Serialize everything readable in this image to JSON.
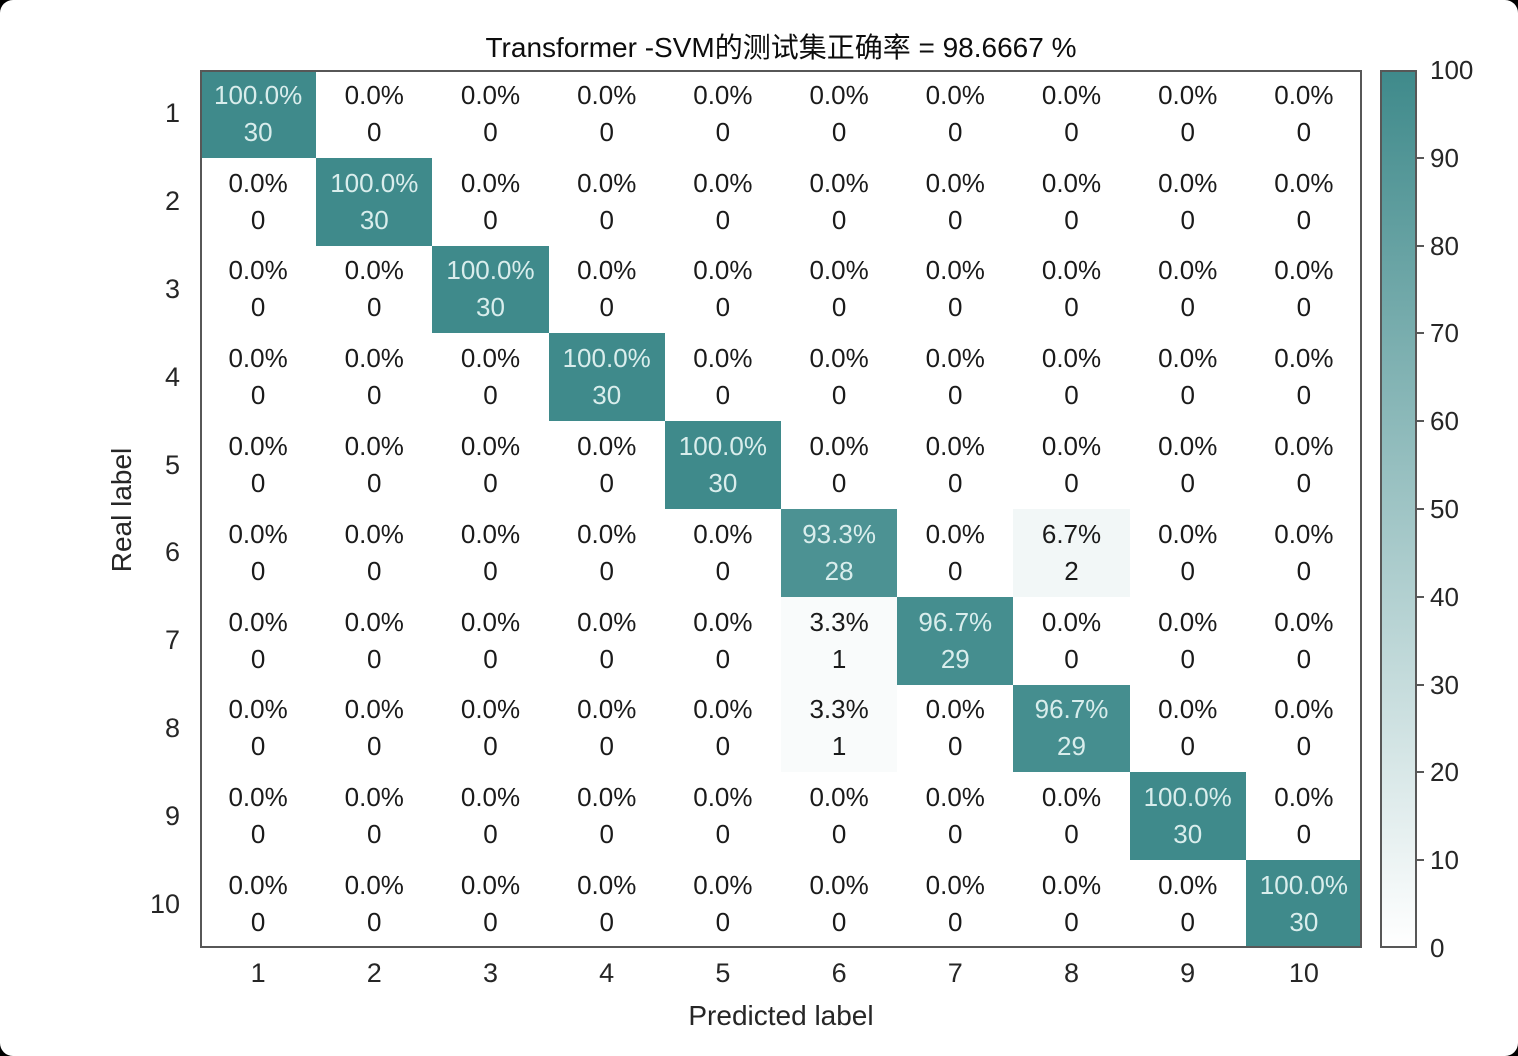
{
  "chart_data": {
    "type": "heatmap",
    "title": "Transformer -SVM的测试集正确率 = 98.6667 %",
    "xlabel": "Predicted label",
    "ylabel": "Real label",
    "x_categories": [
      "1",
      "2",
      "3",
      "4",
      "5",
      "6",
      "7",
      "8",
      "9",
      "10"
    ],
    "y_categories": [
      "1",
      "2",
      "3",
      "4",
      "5",
      "6",
      "7",
      "8",
      "9",
      "10"
    ],
    "cell_format": "percent line over count line, percent shown with one decimal",
    "matrix_percent": [
      [
        100.0,
        0.0,
        0.0,
        0.0,
        0.0,
        0.0,
        0.0,
        0.0,
        0.0,
        0.0
      ],
      [
        0.0,
        100.0,
        0.0,
        0.0,
        0.0,
        0.0,
        0.0,
        0.0,
        0.0,
        0.0
      ],
      [
        0.0,
        0.0,
        100.0,
        0.0,
        0.0,
        0.0,
        0.0,
        0.0,
        0.0,
        0.0
      ],
      [
        0.0,
        0.0,
        0.0,
        100.0,
        0.0,
        0.0,
        0.0,
        0.0,
        0.0,
        0.0
      ],
      [
        0.0,
        0.0,
        0.0,
        0.0,
        100.0,
        0.0,
        0.0,
        0.0,
        0.0,
        0.0
      ],
      [
        0.0,
        0.0,
        0.0,
        0.0,
        0.0,
        93.3,
        0.0,
        6.7,
        0.0,
        0.0
      ],
      [
        0.0,
        0.0,
        0.0,
        0.0,
        0.0,
        3.3,
        96.7,
        0.0,
        0.0,
        0.0
      ],
      [
        0.0,
        0.0,
        0.0,
        0.0,
        0.0,
        3.3,
        0.0,
        96.7,
        0.0,
        0.0
      ],
      [
        0.0,
        0.0,
        0.0,
        0.0,
        0.0,
        0.0,
        0.0,
        0.0,
        100.0,
        0.0
      ],
      [
        0.0,
        0.0,
        0.0,
        0.0,
        0.0,
        0.0,
        0.0,
        0.0,
        0.0,
        100.0
      ]
    ],
    "matrix_count": [
      [
        30,
        0,
        0,
        0,
        0,
        0,
        0,
        0,
        0,
        0
      ],
      [
        0,
        30,
        0,
        0,
        0,
        0,
        0,
        0,
        0,
        0
      ],
      [
        0,
        0,
        30,
        0,
        0,
        0,
        0,
        0,
        0,
        0
      ],
      [
        0,
        0,
        0,
        30,
        0,
        0,
        0,
        0,
        0,
        0
      ],
      [
        0,
        0,
        0,
        0,
        30,
        0,
        0,
        0,
        0,
        0
      ],
      [
        0,
        0,
        0,
        0,
        0,
        28,
        0,
        2,
        0,
        0
      ],
      [
        0,
        0,
        0,
        0,
        0,
        1,
        29,
        0,
        0,
        0
      ],
      [
        0,
        0,
        0,
        0,
        0,
        1,
        0,
        29,
        0,
        0
      ],
      [
        0,
        0,
        0,
        0,
        0,
        0,
        0,
        0,
        30,
        0
      ],
      [
        0,
        0,
        0,
        0,
        0,
        0,
        0,
        0,
        0,
        30
      ]
    ],
    "colorbar": {
      "min": 0,
      "max": 100,
      "ticks": [
        0,
        10,
        20,
        30,
        40,
        50,
        60,
        70,
        80,
        90,
        100
      ],
      "position": "right"
    },
    "colors": {
      "heat_high": "#3f8a8b",
      "heat_low": "#ffffff",
      "cell_text_light": "#d9edec",
      "cell_text_dark": "#1a1a1a",
      "axis_line": "#575757",
      "tick_text": "#262626"
    },
    "layout": {
      "grid_lines": false,
      "legend": "colorbar right, 0 to 100"
    }
  }
}
